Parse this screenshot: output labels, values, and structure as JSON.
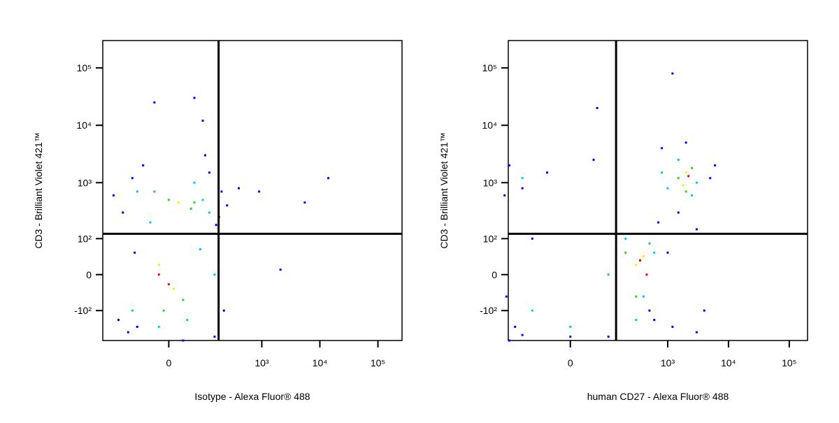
{
  "chart_data": [
    {
      "type": "scatter",
      "scale": "biexponential",
      "xlabel": "Isotype - Alexa Fluor® 488",
      "ylabel": "CD3 - Brilliant Violet 421™",
      "xlim": [
        -340,
        260000
      ],
      "ylim": [
        -350,
        300000
      ],
      "xticks": [
        0,
        {
          "value": 1000,
          "label": "10³"
        },
        {
          "value": 10000,
          "label": "10⁴"
        },
        {
          "value": 100000,
          "label": "10⁵"
        }
      ],
      "yticks": [
        {
          "value": -100,
          "label": "-10²"
        },
        0,
        {
          "value": 100,
          "label": "10²"
        },
        {
          "value": 1000,
          "label": "10³"
        },
        {
          "value": 10000,
          "label": "10⁴"
        },
        {
          "value": 100000,
          "label": "10⁵"
        }
      ],
      "gates": {
        "x": 177,
        "y": 124
      },
      "series": [
        {
          "color": "#0000ff",
          "x": [
            -150,
            -100,
            -60,
            120,
            200,
            250,
            -180,
            -120,
            150,
            220,
            60,
            -30,
            180,
            -80,
            100,
            400,
            900,
            5500,
            14000,
            2100,
            -220,
            90,
            -90,
            30,
            160
          ],
          "values": [
            300,
            1200,
            2000,
            1500,
            700,
            400,
            -150,
            -250,
            -300,
            -100,
            30000,
            25000,
            250,
            -200,
            3000,
            800,
            700,
            450,
            1200,
            10,
            600,
            12000,
            50,
            -350,
            180
          ]
        },
        {
          "color": "#00c8ff",
          "x": [
            -80,
            60,
            120,
            -40,
            90,
            -100,
            40,
            150,
            -20,
            80
          ],
          "values": [
            700,
            1000,
            300,
            200,
            500,
            -100,
            -150,
            0,
            -200,
            60
          ]
        },
        {
          "color": "#30d030",
          "x": [
            0,
            50,
            -30,
            30,
            -10,
            60
          ],
          "values": [
            500,
            350,
            700,
            -60,
            -100,
            450
          ]
        },
        {
          "color": "#f0f000",
          "x": [
            -20,
            10,
            20
          ],
          "values": [
            20,
            -30,
            450
          ]
        },
        {
          "color": "#ff0000",
          "x": [
            -20,
            0
          ],
          "values": [
            0,
            -20
          ]
        }
      ]
    },
    {
      "type": "scatter",
      "scale": "biexponential",
      "xlabel": "human CD27 - Alexa Fluor® 488",
      "ylabel": "CD3 - Brilliant Violet 421™",
      "xlim": [
        -260,
        200000
      ],
      "ylim": [
        -350,
        300000
      ],
      "xticks": [
        0,
        {
          "value": 1000,
          "label": "10³"
        },
        {
          "value": 10000,
          "label": "10⁴"
        },
        {
          "value": 100000,
          "label": "10⁵"
        }
      ],
      "yticks": [
        {
          "value": -100,
          "label": "-10²"
        },
        0,
        {
          "value": 100,
          "label": "10²"
        },
        {
          "value": 1000,
          "label": "10³"
        },
        {
          "value": 10000,
          "label": "10⁴"
        },
        {
          "value": 100000,
          "label": "10⁵"
        }
      ],
      "gates": {
        "x": 137,
        "y": 124
      },
      "series": [
        {
          "color": "#0000ff",
          "x": [
            -250,
            -150,
            -50,
            50,
            -200,
            0,
            -280,
            -100,
            600,
            1000,
            3000,
            4000,
            6000,
            800,
            2000,
            5000,
            1500,
            700,
            -250,
            -150,
            100,
            500,
            -300,
            1200,
            1200,
            3000,
            60
          ],
          "values": [
            2000,
            800,
            1500,
            2500,
            -200,
            -300,
            -50,
            100,
            -150,
            50,
            -250,
            -100,
            2000,
            4000,
            5000,
            1200,
            300,
            200,
            -350,
            -280,
            -300,
            -100,
            600,
            80000,
            -200,
            150,
            20000
          ]
        },
        {
          "color": "#00c8ff",
          "x": [
            -100,
            0,
            200,
            400,
            800,
            1500,
            3000,
            2500,
            1000,
            -150,
            300,
            600
          ],
          "values": [
            -100,
            -200,
            100,
            -50,
            1500,
            2500,
            1000,
            600,
            800,
            1200,
            -150,
            50
          ]
        },
        {
          "color": "#30d030",
          "x": [
            100,
            300,
            200,
            1500,
            2500,
            2000,
            500
          ],
          "values": [
            0,
            -50,
            50,
            1200,
            1800,
            700,
            80
          ]
        },
        {
          "color": "#f0f000",
          "x": [
            300,
            2000,
            400,
            1800
          ],
          "values": [
            20,
            1500,
            40,
            900
          ]
        },
        {
          "color": "#ff0000",
          "x": [
            350,
            2200,
            450
          ],
          "values": [
            30,
            1300,
            0
          ]
        }
      ]
    }
  ]
}
